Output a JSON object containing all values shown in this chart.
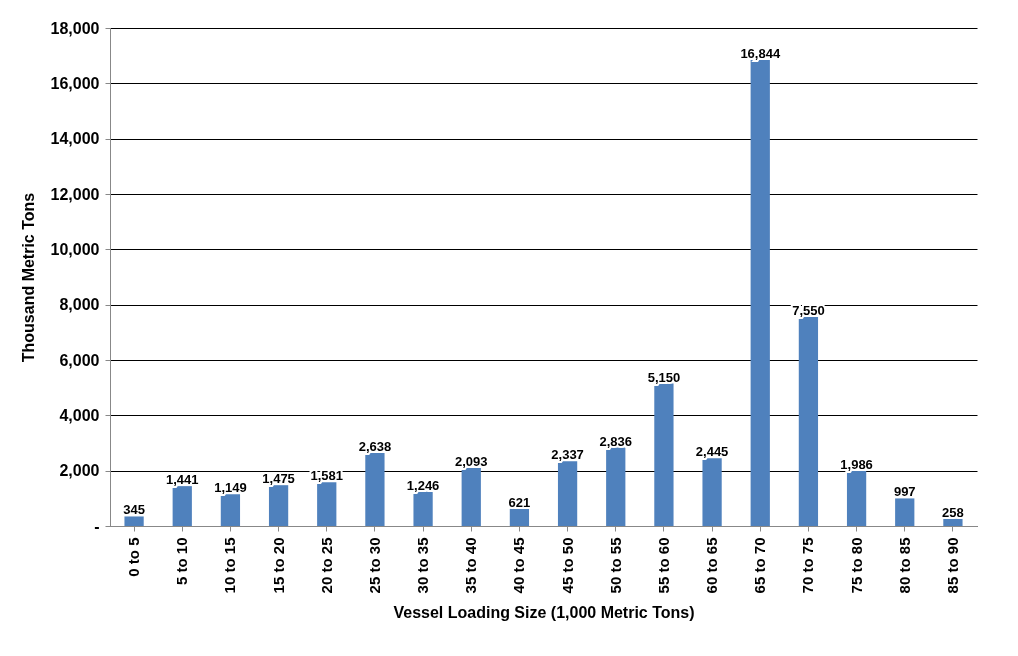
{
  "chart_data": {
    "type": "bar",
    "xlabel": "Vessel Loading Size (1,000 Metric Tons)",
    "ylabel": "Thousand Metric Tons",
    "categories": [
      "0 to 5",
      "5 to 10",
      "10 to 15",
      "15 to 20",
      "20 to 25",
      "25 to 30",
      "30 to 35",
      "35 to 40",
      "40 to 45",
      "45 to 50",
      "50 to 55",
      "55 to 60",
      "60 to 65",
      "65 to 70",
      "70 to 75",
      "75 to 80",
      "80 to 85",
      "85 to 90"
    ],
    "values": [
      345,
      1441,
      1149,
      1475,
      1581,
      2638,
      1246,
      2093,
      621,
      2337,
      2836,
      5150,
      2445,
      16844,
      7550,
      1986,
      997,
      258
    ],
    "color": "#4f81bd",
    "ylim": [
      0,
      18000
    ],
    "yticks": [
      {
        "value": 0,
        "label": "-"
      },
      {
        "value": 2000,
        "label": "2,000"
      },
      {
        "value": 4000,
        "label": "4,000"
      },
      {
        "value": 6000,
        "label": "6,000"
      },
      {
        "value": 8000,
        "label": "8,000"
      },
      {
        "value": 10000,
        "label": "10,000"
      },
      {
        "value": 12000,
        "label": "12,000"
      },
      {
        "value": 14000,
        "label": "14,000"
      },
      {
        "value": 16000,
        "label": "16,000"
      },
      {
        "value": 18000,
        "label": "18,000"
      }
    ],
    "value_labels": [
      "345",
      "1,441",
      "1,149",
      "1,475",
      "1,581",
      "2,638",
      "1,246",
      "2,093",
      "621",
      "2,337",
      "2,836",
      "5,150",
      "2,445",
      "16,844",
      "7,550",
      "1,986",
      "997",
      "258"
    ],
    "grid": "y"
  }
}
